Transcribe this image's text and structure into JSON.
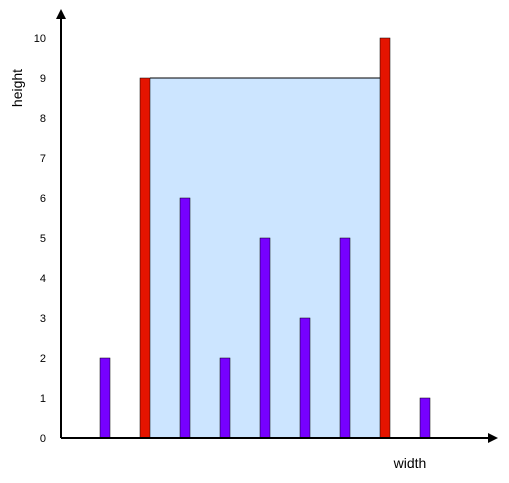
{
  "chart_data": {
    "type": "bar",
    "xlabel": "width",
    "ylabel": "height",
    "ylim": [
      0,
      10
    ],
    "yticks": [
      "0",
      "1",
      "2",
      "3",
      "4",
      "5",
      "6",
      "7",
      "8",
      "9",
      "10"
    ],
    "x": [
      1,
      2,
      3,
      4,
      5,
      6,
      7,
      8,
      9
    ],
    "values": [
      2,
      9,
      6,
      2,
      5,
      3,
      5,
      10,
      1
    ],
    "highlighted": [
      2,
      8
    ],
    "container": {
      "from": 2,
      "to": 8,
      "level": 9
    },
    "colors": {
      "bar": "#7700ff",
      "highlight_bar": "#e51400",
      "container_fill": "#cce5ff",
      "axis": "#000000"
    }
  }
}
